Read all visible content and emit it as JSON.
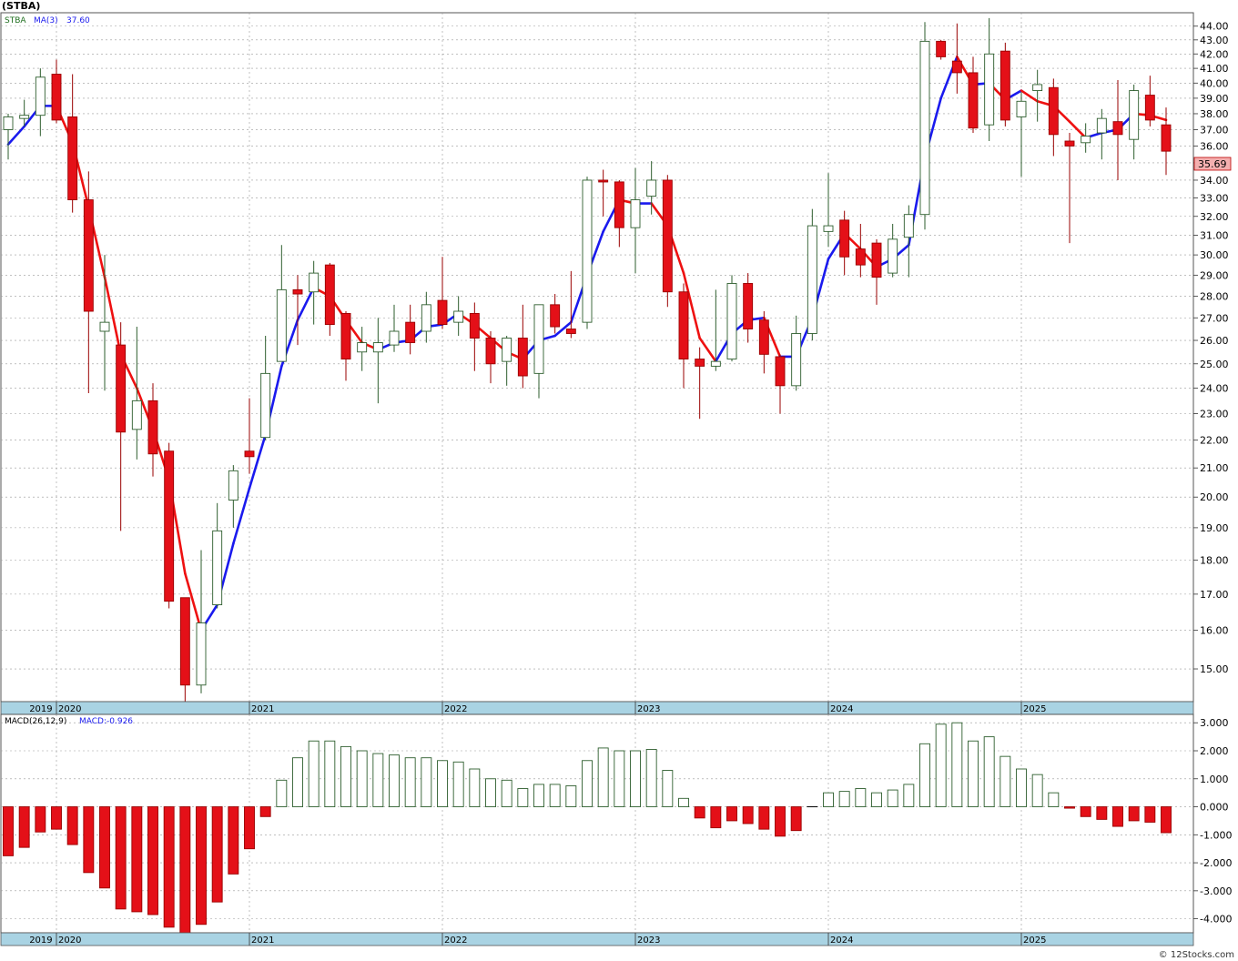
{
  "title": "(STBA)",
  "watermark": "© 12Stocks.com",
  "colors": {
    "up": "#ffffff",
    "up_border": "#2e5e2e",
    "down": "#e41018",
    "down_border": "#9a0000",
    "ma_up": "#1a1aee",
    "ma_down": "#ee1111",
    "axis_band": "#a9d3e3",
    "grid": "#9a9a9a",
    "last_price_bg": "#f4b0b0"
  },
  "chart_data": [
    {
      "type": "candlestick",
      "symbol": "STBA",
      "indicator_label": "MA(3)",
      "indicator_value": "37.60",
      "last_price": "35.69",
      "ylim": [
        14.2,
        45.0
      ],
      "log_scale": true,
      "grid": true,
      "y_ticks": [
        "15.00",
        "16.00",
        "17.00",
        "18.00",
        "19.00",
        "20.00",
        "21.00",
        "22.00",
        "23.00",
        "24.00",
        "25.00",
        "26.00",
        "27.00",
        "28.00",
        "29.00",
        "30.00",
        "31.00",
        "32.00",
        "33.00",
        "34.00",
        "35.00",
        "36.00",
        "37.00",
        "38.00",
        "39.00",
        "40.00",
        "41.00",
        "42.00",
        "43.00",
        "44.00"
      ],
      "x_labels": [
        "2019",
        "2020",
        "2021",
        "2022",
        "2023",
        "2024",
        "2025"
      ],
      "x_label_months": [
        -1.8,
        0,
        12,
        24,
        36,
        48,
        60
      ],
      "candles": [
        {
          "m": -3,
          "o": 37.0,
          "h": 38.0,
          "l": 35.2,
          "c": 37.8
        },
        {
          "m": -2,
          "o": 37.7,
          "h": 38.9,
          "l": 37.2,
          "c": 37.9
        },
        {
          "m": -1,
          "o": 37.9,
          "h": 41.0,
          "l": 36.6,
          "c": 40.4
        },
        {
          "m": 0,
          "o": 40.6,
          "h": 41.6,
          "l": 37.4,
          "c": 37.6
        },
        {
          "m": 1,
          "o": 37.8,
          "h": 40.6,
          "l": 32.2,
          "c": 32.9
        },
        {
          "m": 2,
          "o": 32.9,
          "h": 34.5,
          "l": 23.8,
          "c": 27.3
        },
        {
          "m": 3,
          "o": 26.4,
          "h": 30.0,
          "l": 23.9,
          "c": 26.8
        },
        {
          "m": 4,
          "o": 25.8,
          "h": 26.8,
          "l": 18.9,
          "c": 22.3
        },
        {
          "m": 5,
          "o": 22.4,
          "h": 26.6,
          "l": 21.3,
          "c": 23.5
        },
        {
          "m": 6,
          "o": 23.5,
          "h": 24.2,
          "l": 20.7,
          "c": 21.5
        },
        {
          "m": 7,
          "o": 21.6,
          "h": 21.9,
          "l": 16.6,
          "c": 16.8
        },
        {
          "m": 8,
          "o": 16.9,
          "h": 16.9,
          "l": 14.0,
          "c": 14.6
        },
        {
          "m": 9,
          "o": 14.6,
          "h": 18.3,
          "l": 14.4,
          "c": 16.2
        },
        {
          "m": 10,
          "o": 16.7,
          "h": 19.8,
          "l": 16.6,
          "c": 18.9
        },
        {
          "m": 11,
          "o": 19.9,
          "h": 21.1,
          "l": 19.0,
          "c": 20.9
        },
        {
          "m": 12,
          "o": 21.6,
          "h": 23.6,
          "l": 20.8,
          "c": 21.4
        },
        {
          "m": 13,
          "o": 22.1,
          "h": 26.2,
          "l": 22.0,
          "c": 24.6
        },
        {
          "m": 14,
          "o": 25.1,
          "h": 30.5,
          "l": 25.1,
          "c": 28.3
        },
        {
          "m": 15,
          "o": 28.3,
          "h": 29.0,
          "l": 25.8,
          "c": 28.1
        },
        {
          "m": 16,
          "o": 28.2,
          "h": 29.7,
          "l": 26.7,
          "c": 29.1
        },
        {
          "m": 17,
          "o": 29.5,
          "h": 29.6,
          "l": 26.2,
          "c": 26.7
        },
        {
          "m": 18,
          "o": 27.2,
          "h": 27.3,
          "l": 24.3,
          "c": 25.2
        },
        {
          "m": 19,
          "o": 25.5,
          "h": 26.6,
          "l": 24.7,
          "c": 25.9
        },
        {
          "m": 20,
          "o": 25.5,
          "h": 27.0,
          "l": 23.4,
          "c": 25.9
        },
        {
          "m": 21,
          "o": 25.8,
          "h": 27.6,
          "l": 25.5,
          "c": 26.4
        },
        {
          "m": 22,
          "o": 26.8,
          "h": 27.6,
          "l": 25.4,
          "c": 25.9
        },
        {
          "m": 23,
          "o": 26.4,
          "h": 28.2,
          "l": 25.9,
          "c": 27.6
        },
        {
          "m": 24,
          "o": 27.8,
          "h": 29.9,
          "l": 26.5,
          "c": 26.7
        },
        {
          "m": 25,
          "o": 26.8,
          "h": 28.0,
          "l": 26.2,
          "c": 27.3
        },
        {
          "m": 26,
          "o": 27.2,
          "h": 27.7,
          "l": 24.7,
          "c": 26.1
        },
        {
          "m": 27,
          "o": 26.1,
          "h": 26.4,
          "l": 24.2,
          "c": 25.0
        },
        {
          "m": 28,
          "o": 25.1,
          "h": 26.2,
          "l": 24.1,
          "c": 26.1
        },
        {
          "m": 29,
          "o": 26.1,
          "h": 27.6,
          "l": 24.0,
          "c": 24.5
        },
        {
          "m": 30,
          "o": 24.6,
          "h": 27.6,
          "l": 23.6,
          "c": 27.6
        },
        {
          "m": 31,
          "o": 27.6,
          "h": 28.1,
          "l": 26.3,
          "c": 26.6
        },
        {
          "m": 32,
          "o": 26.5,
          "h": 29.2,
          "l": 26.1,
          "c": 26.3
        },
        {
          "m": 33,
          "o": 26.8,
          "h": 34.2,
          "l": 26.5,
          "c": 34.0
        },
        {
          "m": 34,
          "o": 34.0,
          "h": 34.6,
          "l": 32.0,
          "c": 33.9
        },
        {
          "m": 35,
          "o": 33.9,
          "h": 34.0,
          "l": 30.4,
          "c": 31.4
        },
        {
          "m": 36,
          "o": 31.4,
          "h": 34.7,
          "l": 29.1,
          "c": 32.9
        },
        {
          "m": 37,
          "o": 33.1,
          "h": 35.1,
          "l": 32.1,
          "c": 34.0
        },
        {
          "m": 38,
          "o": 34.0,
          "h": 34.3,
          "l": 27.5,
          "c": 28.2
        },
        {
          "m": 39,
          "o": 28.2,
          "h": 28.6,
          "l": 24.0,
          "c": 25.2
        },
        {
          "m": 40,
          "o": 25.2,
          "h": 25.7,
          "l": 22.8,
          "c": 24.9
        },
        {
          "m": 41,
          "o": 24.9,
          "h": 28.3,
          "l": 24.7,
          "c": 25.1
        },
        {
          "m": 42,
          "o": 25.2,
          "h": 29.0,
          "l": 25.1,
          "c": 28.6
        },
        {
          "m": 43,
          "o": 28.6,
          "h": 29.1,
          "l": 25.9,
          "c": 26.5
        },
        {
          "m": 44,
          "o": 26.9,
          "h": 27.3,
          "l": 24.6,
          "c": 25.4
        },
        {
          "m": 45,
          "o": 25.3,
          "h": 25.4,
          "l": 23.0,
          "c": 24.1
        },
        {
          "m": 46,
          "o": 24.1,
          "h": 27.1,
          "l": 23.9,
          "c": 26.3
        },
        {
          "m": 47,
          "o": 26.3,
          "h": 32.4,
          "l": 26.0,
          "c": 31.5
        },
        {
          "m": 48,
          "o": 31.2,
          "h": 34.4,
          "l": 30.4,
          "c": 31.5
        },
        {
          "m": 49,
          "o": 31.8,
          "h": 32.3,
          "l": 29.0,
          "c": 29.9
        },
        {
          "m": 50,
          "o": 30.3,
          "h": 31.6,
          "l": 28.9,
          "c": 29.5
        },
        {
          "m": 51,
          "o": 30.6,
          "h": 30.8,
          "l": 27.6,
          "c": 28.9
        },
        {
          "m": 52,
          "o": 29.1,
          "h": 31.6,
          "l": 28.9,
          "c": 30.8
        },
        {
          "m": 53,
          "o": 30.9,
          "h": 32.6,
          "l": 28.9,
          "c": 32.1
        },
        {
          "m": 54,
          "o": 32.1,
          "h": 44.3,
          "l": 31.3,
          "c": 42.9
        },
        {
          "m": 55,
          "o": 42.9,
          "h": 43.0,
          "l": 41.6,
          "c": 41.8
        },
        {
          "m": 56,
          "o": 41.5,
          "h": 44.2,
          "l": 39.3,
          "c": 40.7
        },
        {
          "m": 57,
          "o": 40.7,
          "h": 41.8,
          "l": 36.8,
          "c": 37.1
        },
        {
          "m": 58,
          "o": 37.3,
          "h": 44.6,
          "l": 36.3,
          "c": 42.0
        },
        {
          "m": 59,
          "o": 42.2,
          "h": 42.8,
          "l": 37.2,
          "c": 37.6
        },
        {
          "m": 60,
          "o": 37.8,
          "h": 39.4,
          "l": 34.2,
          "c": 38.8
        },
        {
          "m": 61,
          "o": 39.5,
          "h": 40.9,
          "l": 37.5,
          "c": 39.9
        },
        {
          "m": 62,
          "o": 39.7,
          "h": 40.3,
          "l": 35.4,
          "c": 36.7
        },
        {
          "m": 63,
          "o": 36.3,
          "h": 36.8,
          "l": 30.6,
          "c": 36.0
        },
        {
          "m": 64,
          "o": 36.2,
          "h": 37.4,
          "l": 35.6,
          "c": 36.6
        },
        {
          "m": 65,
          "o": 36.8,
          "h": 38.3,
          "l": 35.2,
          "c": 37.7
        },
        {
          "m": 66,
          "o": 37.5,
          "h": 40.2,
          "l": 34.0,
          "c": 36.7
        },
        {
          "m": 67,
          "o": 36.4,
          "h": 39.9,
          "l": 35.2,
          "c": 39.5
        },
        {
          "m": 68,
          "o": 39.2,
          "h": 40.5,
          "l": 37.2,
          "c": 37.6
        },
        {
          "m": 69,
          "o": 37.3,
          "h": 38.4,
          "l": 34.3,
          "c": 35.69
        }
      ],
      "ma": [
        {
          "m": -3,
          "v": 36.1
        },
        {
          "m": -2,
          "v": 37.2
        },
        {
          "m": -1,
          "v": 38.5
        },
        {
          "m": 0,
          "v": 38.5
        },
        {
          "m": 1,
          "v": 36.2
        },
        {
          "m": 2,
          "v": 32.5
        },
        {
          "m": 3,
          "v": 28.9
        },
        {
          "m": 4,
          "v": 25.4
        },
        {
          "m": 5,
          "v": 24.0
        },
        {
          "m": 6,
          "v": 22.4
        },
        {
          "m": 7,
          "v": 20.6
        },
        {
          "m": 8,
          "v": 17.6
        },
        {
          "m": 9,
          "v": 16.0
        },
        {
          "m": 10,
          "v": 16.7
        },
        {
          "m": 11,
          "v": 18.5
        },
        {
          "m": 12,
          "v": 20.3
        },
        {
          "m": 13,
          "v": 22.2
        },
        {
          "m": 14,
          "v": 24.9
        },
        {
          "m": 15,
          "v": 26.9
        },
        {
          "m": 16,
          "v": 28.4
        },
        {
          "m": 17,
          "v": 28.0
        },
        {
          "m": 18,
          "v": 26.9
        },
        {
          "m": 19,
          "v": 25.9
        },
        {
          "m": 20,
          "v": 25.6
        },
        {
          "m": 21,
          "v": 25.9
        },
        {
          "m": 22,
          "v": 26.0
        },
        {
          "m": 23,
          "v": 26.6
        },
        {
          "m": 24,
          "v": 26.7
        },
        {
          "m": 25,
          "v": 27.2
        },
        {
          "m": 26,
          "v": 26.7
        },
        {
          "m": 27,
          "v": 26.1
        },
        {
          "m": 28,
          "v": 25.5
        },
        {
          "m": 29,
          "v": 25.2
        },
        {
          "m": 30,
          "v": 26.0
        },
        {
          "m": 31,
          "v": 26.2
        },
        {
          "m": 32,
          "v": 26.8
        },
        {
          "m": 33,
          "v": 29.0
        },
        {
          "m": 34,
          "v": 31.2
        },
        {
          "m": 35,
          "v": 32.9
        },
        {
          "m": 36,
          "v": 32.7
        },
        {
          "m": 37,
          "v": 32.7
        },
        {
          "m": 38,
          "v": 31.5
        },
        {
          "m": 39,
          "v": 29.1
        },
        {
          "m": 40,
          "v": 26.1
        },
        {
          "m": 41,
          "v": 25.1
        },
        {
          "m": 42,
          "v": 26.3
        },
        {
          "m": 43,
          "v": 26.9
        },
        {
          "m": 44,
          "v": 27.0
        },
        {
          "m": 45,
          "v": 25.3
        },
        {
          "m": 46,
          "v": 25.3
        },
        {
          "m": 47,
          "v": 27.0
        },
        {
          "m": 48,
          "v": 29.8
        },
        {
          "m": 49,
          "v": 31.1
        },
        {
          "m": 50,
          "v": 30.3
        },
        {
          "m": 51,
          "v": 29.4
        },
        {
          "m": 52,
          "v": 29.8
        },
        {
          "m": 53,
          "v": 30.5
        },
        {
          "m": 54,
          "v": 35.3
        },
        {
          "m": 55,
          "v": 39.0
        },
        {
          "m": 56,
          "v": 41.8
        },
        {
          "m": 57,
          "v": 39.9
        },
        {
          "m": 58,
          "v": 40.0
        },
        {
          "m": 59,
          "v": 38.9
        },
        {
          "m": 60,
          "v": 39.5
        },
        {
          "m": 61,
          "v": 38.8
        },
        {
          "m": 62,
          "v": 38.5
        },
        {
          "m": 63,
          "v": 37.5
        },
        {
          "m": 64,
          "v": 36.5
        },
        {
          "m": 65,
          "v": 36.8
        },
        {
          "m": 66,
          "v": 37.0
        },
        {
          "m": 67,
          "v": 38.0
        },
        {
          "m": 68,
          "v": 37.9
        },
        {
          "m": 69,
          "v": 37.6
        }
      ]
    },
    {
      "type": "bar",
      "indicator_label": "MACD(26,12,9)",
      "indicator_value": "MACD:-0.926",
      "ylim": [
        -4.5,
        3.3
      ],
      "grid": true,
      "y_ticks": [
        "3.000",
        "2.000",
        "1.000",
        "0.000",
        "-1.000",
        "-2.000",
        "-3.000",
        "-4.000"
      ],
      "x_labels": [
        "2019",
        "2020",
        "2021",
        "2022",
        "2023",
        "2024",
        "2025"
      ],
      "x_label_months": [
        -1.8,
        0,
        12,
        24,
        36,
        48,
        60
      ],
      "bars": [
        {
          "m": -3,
          "v": -1.75
        },
        {
          "m": -2,
          "v": -1.45
        },
        {
          "m": -1,
          "v": -0.9
        },
        {
          "m": 0,
          "v": -0.8
        },
        {
          "m": 1,
          "v": -1.35
        },
        {
          "m": 2,
          "v": -2.35
        },
        {
          "m": 3,
          "v": -2.9
        },
        {
          "m": 4,
          "v": -3.65
        },
        {
          "m": 5,
          "v": -3.75
        },
        {
          "m": 6,
          "v": -3.85
        },
        {
          "m": 7,
          "v": -4.3
        },
        {
          "m": 8,
          "v": -4.55
        },
        {
          "m": 9,
          "v": -4.2
        },
        {
          "m": 10,
          "v": -3.4
        },
        {
          "m": 11,
          "v": -2.4
        },
        {
          "m": 12,
          "v": -1.5
        },
        {
          "m": 13,
          "v": -0.35
        },
        {
          "m": 14,
          "v": 0.95
        },
        {
          "m": 15,
          "v": 1.75
        },
        {
          "m": 16,
          "v": 2.35
        },
        {
          "m": 17,
          "v": 2.35
        },
        {
          "m": 18,
          "v": 2.15
        },
        {
          "m": 19,
          "v": 2.0
        },
        {
          "m": 20,
          "v": 1.9
        },
        {
          "m": 21,
          "v": 1.85
        },
        {
          "m": 22,
          "v": 1.75
        },
        {
          "m": 23,
          "v": 1.75
        },
        {
          "m": 24,
          "v": 1.65
        },
        {
          "m": 25,
          "v": 1.6
        },
        {
          "m": 26,
          "v": 1.35
        },
        {
          "m": 27,
          "v": 1.0
        },
        {
          "m": 28,
          "v": 0.95
        },
        {
          "m": 29,
          "v": 0.65
        },
        {
          "m": 30,
          "v": 0.8
        },
        {
          "m": 31,
          "v": 0.8
        },
        {
          "m": 32,
          "v": 0.75
        },
        {
          "m": 33,
          "v": 1.65
        },
        {
          "m": 34,
          "v": 2.1
        },
        {
          "m": 35,
          "v": 2.0
        },
        {
          "m": 36,
          "v": 2.0
        },
        {
          "m": 37,
          "v": 2.05
        },
        {
          "m": 38,
          "v": 1.3
        },
        {
          "m": 39,
          "v": 0.3
        },
        {
          "m": 40,
          "v": -0.4
        },
        {
          "m": 41,
          "v": -0.75
        },
        {
          "m": 42,
          "v": -0.5
        },
        {
          "m": 43,
          "v": -0.6
        },
        {
          "m": 44,
          "v": -0.8
        },
        {
          "m": 45,
          "v": -1.05
        },
        {
          "m": 46,
          "v": -0.85
        },
        {
          "m": 47,
          "v": 0.0
        },
        {
          "m": 48,
          "v": 0.5
        },
        {
          "m": 49,
          "v": 0.55
        },
        {
          "m": 50,
          "v": 0.65
        },
        {
          "m": 51,
          "v": 0.5
        },
        {
          "m": 52,
          "v": 0.6
        },
        {
          "m": 53,
          "v": 0.8
        },
        {
          "m": 54,
          "v": 2.25
        },
        {
          "m": 55,
          "v": 2.95
        },
        {
          "m": 56,
          "v": 3.0
        },
        {
          "m": 57,
          "v": 2.35
        },
        {
          "m": 58,
          "v": 2.5
        },
        {
          "m": 59,
          "v": 1.8
        },
        {
          "m": 60,
          "v": 1.35
        },
        {
          "m": 61,
          "v": 1.15
        },
        {
          "m": 62,
          "v": 0.5
        },
        {
          "m": 63,
          "v": -0.05
        },
        {
          "m": 64,
          "v": -0.35
        },
        {
          "m": 65,
          "v": -0.45
        },
        {
          "m": 66,
          "v": -0.7
        },
        {
          "m": 67,
          "v": -0.5
        },
        {
          "m": 68,
          "v": -0.55
        },
        {
          "m": 69,
          "v": -0.926
        }
      ]
    }
  ]
}
